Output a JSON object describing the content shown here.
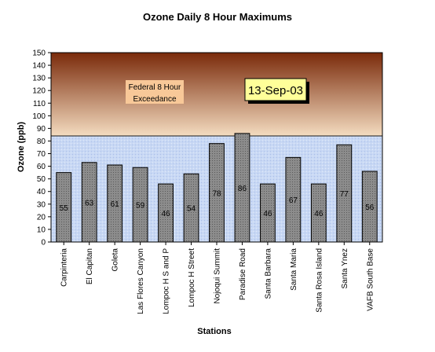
{
  "chart_data": {
    "type": "bar",
    "title": "Ozone Daily 8 Hour Maximums",
    "xlabel": "Stations",
    "ylabel": "Ozone (ppb)",
    "ylim": [
      0,
      150
    ],
    "ytick_step": 10,
    "categories": [
      "Carpinteria",
      "El Capitan",
      "Goleta",
      "Las Flores Canyon",
      "Lompoc H S and P",
      "Lompoc H Street",
      "Nojoqui Summit",
      "Paradise Road",
      "Santa Barbara",
      "Santa Maria",
      "Santa Rosa Island",
      "Santa Ynez",
      "VAFB South Base"
    ],
    "values": [
      55,
      63,
      61,
      59,
      46,
      54,
      78,
      86,
      46,
      67,
      46,
      77,
      56
    ],
    "threshold": 84,
    "threshold_label_lines": [
      "Federal 8 Hour",
      "Exceedance"
    ],
    "date_label": "13-Sep-03",
    "grid": false,
    "legend": "none",
    "colors": {
      "bar_fill": "#8c8c8c",
      "bar_stroke": "#000000",
      "exceedance_top": "#7a2a0a",
      "exceedance_bottom": "#f4dcc0",
      "normal_band": "#c8d8f4",
      "threshold_line": "#1a1a1a",
      "date_box_fill": "#ffff99",
      "annotation_fill": "#f8c898"
    }
  }
}
